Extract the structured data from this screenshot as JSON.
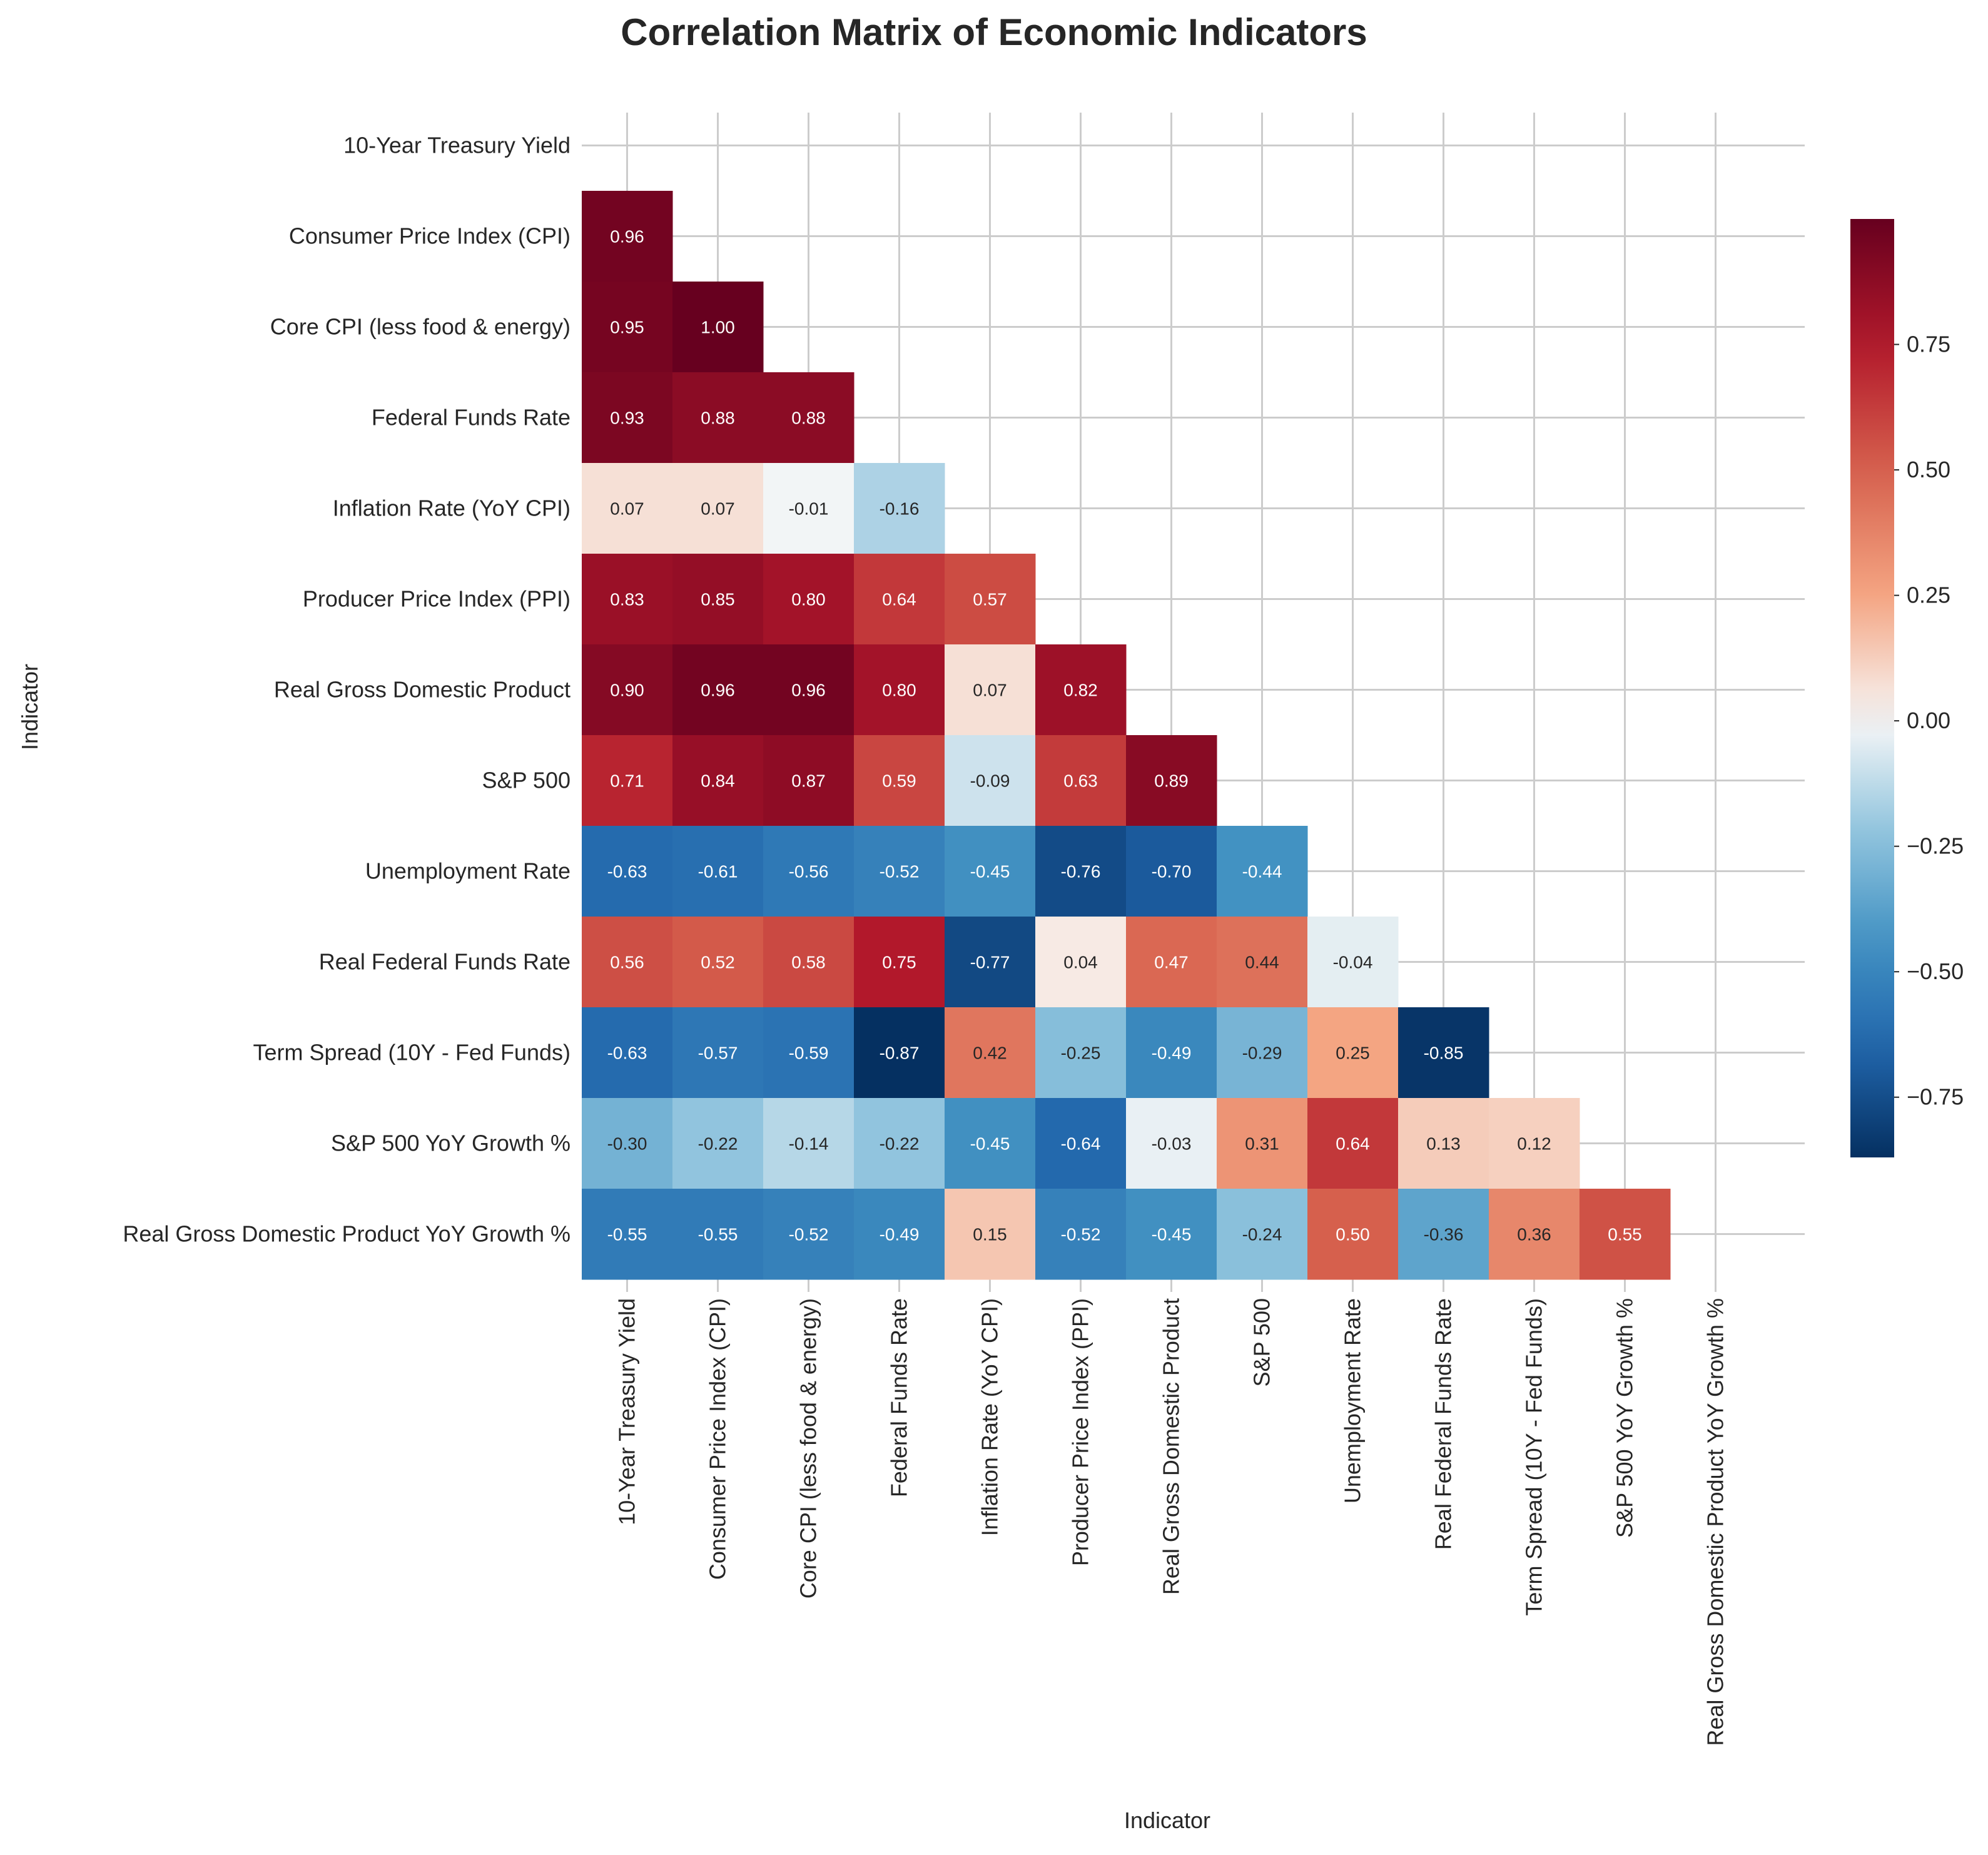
{
  "chart_data": {
    "type": "heatmap",
    "title": "Correlation Matrix of Economic Indicators",
    "xlabel": "Indicator",
    "ylabel": "Indicator",
    "categories": [
      "10-Year Treasury Yield",
      "Consumer Price Index (CPI)",
      "Core CPI (less food & energy)",
      "Federal Funds Rate",
      "Inflation Rate (YoY CPI)",
      "Producer Price Index (PPI)",
      "Real Gross Domestic Product",
      "S&P 500",
      "Unemployment Rate",
      "Real Federal Funds Rate",
      "Term Spread (10Y - Fed Funds)",
      "S&P 500 YoY Growth %",
      "Real Gross Domestic Product YoY Growth %"
    ],
    "mask": "upper-triangle-including-diagonal",
    "values": [
      [],
      [
        0.96
      ],
      [
        0.95,
        1.0
      ],
      [
        0.93,
        0.88,
        0.88
      ],
      [
        0.07,
        0.07,
        -0.01,
        -0.16
      ],
      [
        0.83,
        0.85,
        0.8,
        0.64,
        0.57
      ],
      [
        0.9,
        0.96,
        0.96,
        0.8,
        0.07,
        0.82
      ],
      [
        0.71,
        0.84,
        0.87,
        0.59,
        -0.09,
        0.63,
        0.89
      ],
      [
        -0.63,
        -0.61,
        -0.56,
        -0.52,
        -0.45,
        -0.76,
        -0.7,
        -0.44
      ],
      [
        0.56,
        0.52,
        0.58,
        0.75,
        -0.77,
        0.04,
        0.47,
        0.44,
        -0.04
      ],
      [
        -0.63,
        -0.57,
        -0.59,
        -0.87,
        0.42,
        -0.25,
        -0.49,
        -0.29,
        0.25,
        -0.85
      ],
      [
        -0.3,
        -0.22,
        -0.14,
        -0.22,
        -0.45,
        -0.64,
        -0.03,
        0.31,
        0.64,
        0.13,
        0.12
      ],
      [
        -0.55,
        -0.55,
        -0.52,
        -0.49,
        0.15,
        -0.52,
        -0.45,
        -0.24,
        0.5,
        -0.36,
        0.36,
        0.55
      ]
    ],
    "colormap": "RdBu_r",
    "color_range": [
      -0.87,
      1.0
    ],
    "colorbar_ticks": [
      0.75,
      0.5,
      0.25,
      0.0,
      -0.25,
      -0.5,
      -0.75
    ],
    "colorbar_tick_labels": [
      "0.75",
      "0.50",
      "0.25",
      "0.00",
      "−0.25",
      "−0.50",
      "−0.75"
    ],
    "colors": {
      "grid": "#cccccc",
      "text": "#262626",
      "background": "#ffffff"
    },
    "grid": true,
    "value_format": "0.00"
  }
}
